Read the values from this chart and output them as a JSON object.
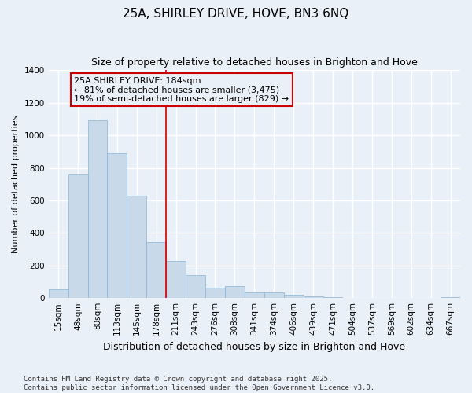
{
  "title": "25A, SHIRLEY DRIVE, HOVE, BN3 6NQ",
  "subtitle": "Size of property relative to detached houses in Brighton and Hove",
  "xlabel": "Distribution of detached houses by size in Brighton and Hove",
  "ylabel": "Number of detached properties",
  "categories": [
    "15sqm",
    "48sqm",
    "80sqm",
    "113sqm",
    "145sqm",
    "178sqm",
    "211sqm",
    "243sqm",
    "276sqm",
    "308sqm",
    "341sqm",
    "374sqm",
    "406sqm",
    "439sqm",
    "471sqm",
    "504sqm",
    "537sqm",
    "569sqm",
    "602sqm",
    "634sqm",
    "667sqm"
  ],
  "values": [
    55,
    760,
    1095,
    890,
    630,
    345,
    230,
    140,
    65,
    75,
    35,
    35,
    20,
    12,
    8,
    2,
    0,
    1,
    0,
    0,
    8
  ],
  "bar_color": "#c8daea",
  "bar_edgecolor": "#8ab4d4",
  "bg_color": "#eaf0f8",
  "grid_color": "#ffffff",
  "vline_x": 5.5,
  "vline_color": "#cc0000",
  "annotation_line1": "25A SHIRLEY DRIVE: 184sqm",
  "annotation_line2": "← 81% of detached houses are smaller (3,475)",
  "annotation_line3": "19% of semi-detached houses are larger (829) →",
  "annotation_box_edgecolor": "#cc0000",
  "footer_text": "Contains HM Land Registry data © Crown copyright and database right 2025.\nContains public sector information licensed under the Open Government Licence v3.0.",
  "ylim": [
    0,
    1400
  ],
  "yticks": [
    0,
    200,
    400,
    600,
    800,
    1000,
    1200,
    1400
  ],
  "title_fontsize": 11,
  "subtitle_fontsize": 9,
  "xlabel_fontsize": 9,
  "ylabel_fontsize": 8,
  "tick_fontsize": 7.5,
  "annot_fontsize": 8,
  "footer_fontsize": 6.5
}
